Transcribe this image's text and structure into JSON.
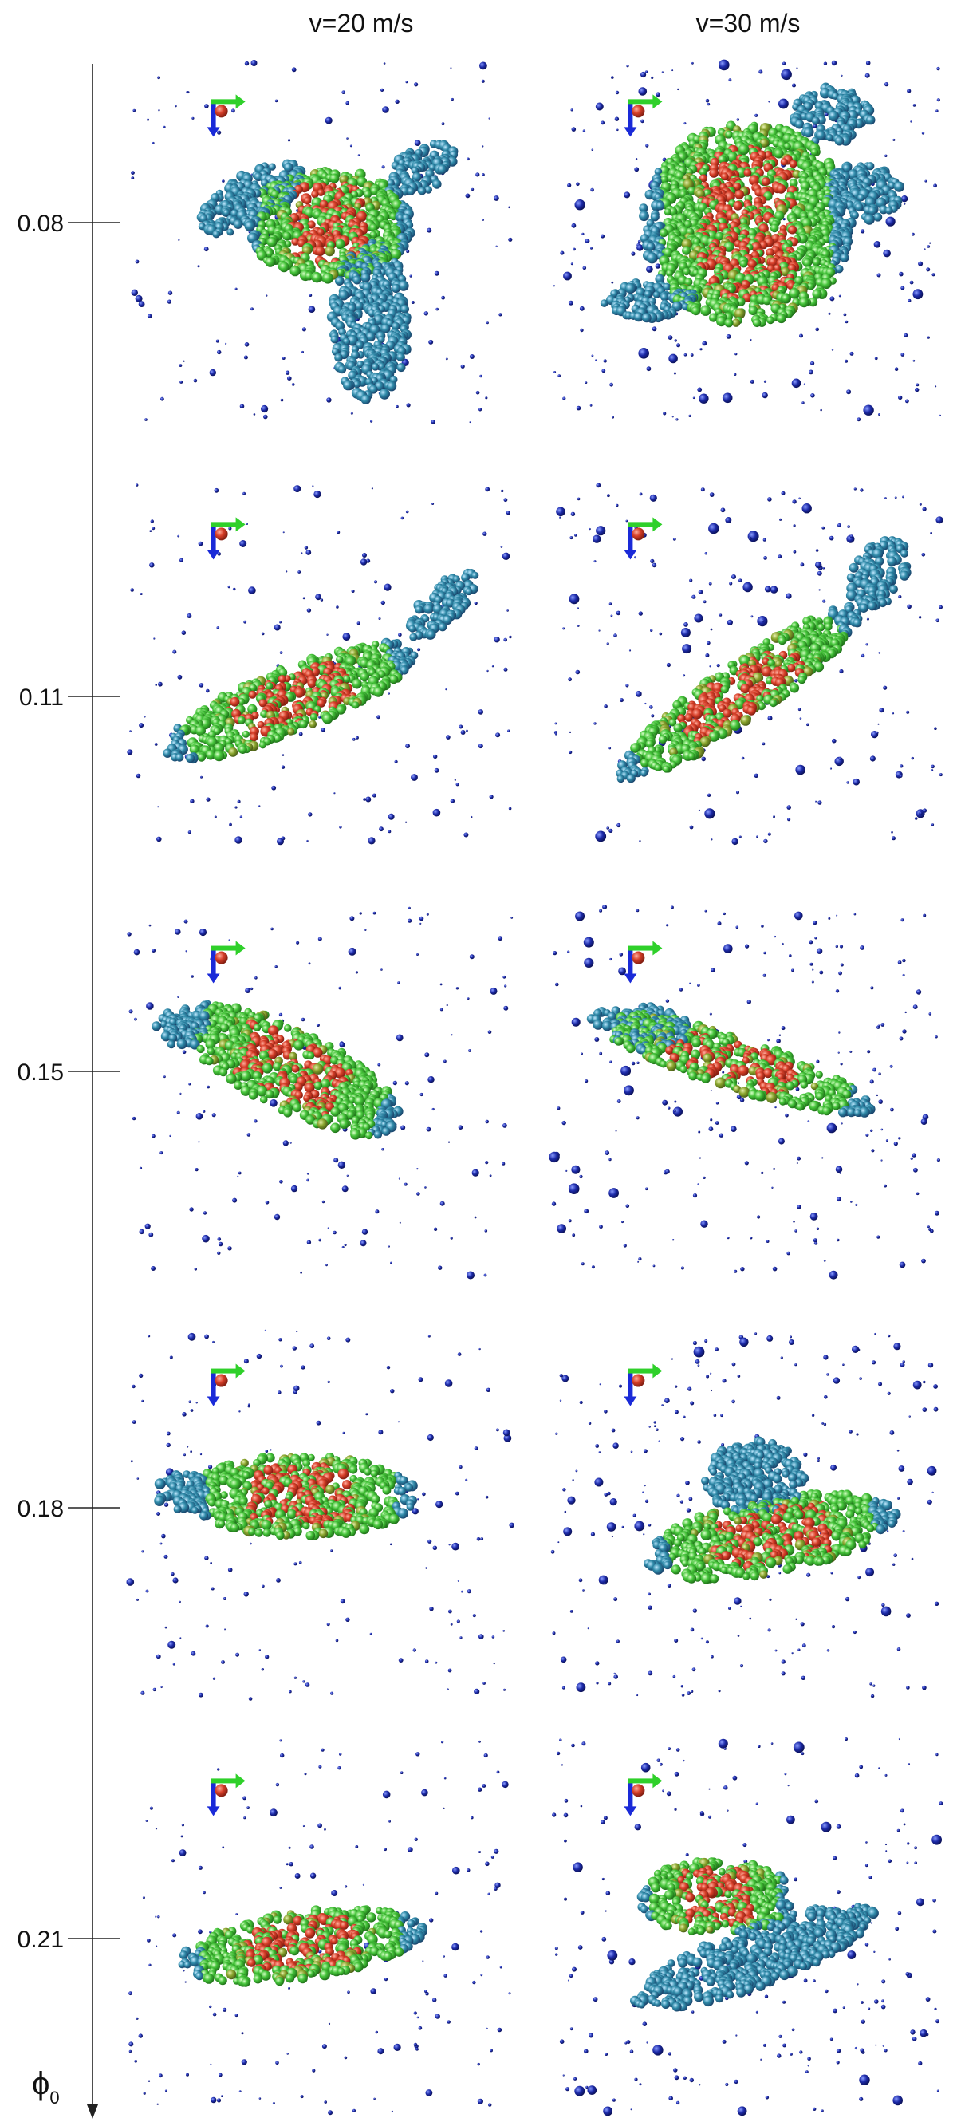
{
  "columns": [
    "v=20 m/s",
    "v=30 m/s"
  ],
  "rows": [
    "0.08",
    "0.11",
    "0.15",
    "0.18",
    "0.21"
  ],
  "axis_label": {
    "symbol": "ϕ",
    "subscript": "0"
  }
}
